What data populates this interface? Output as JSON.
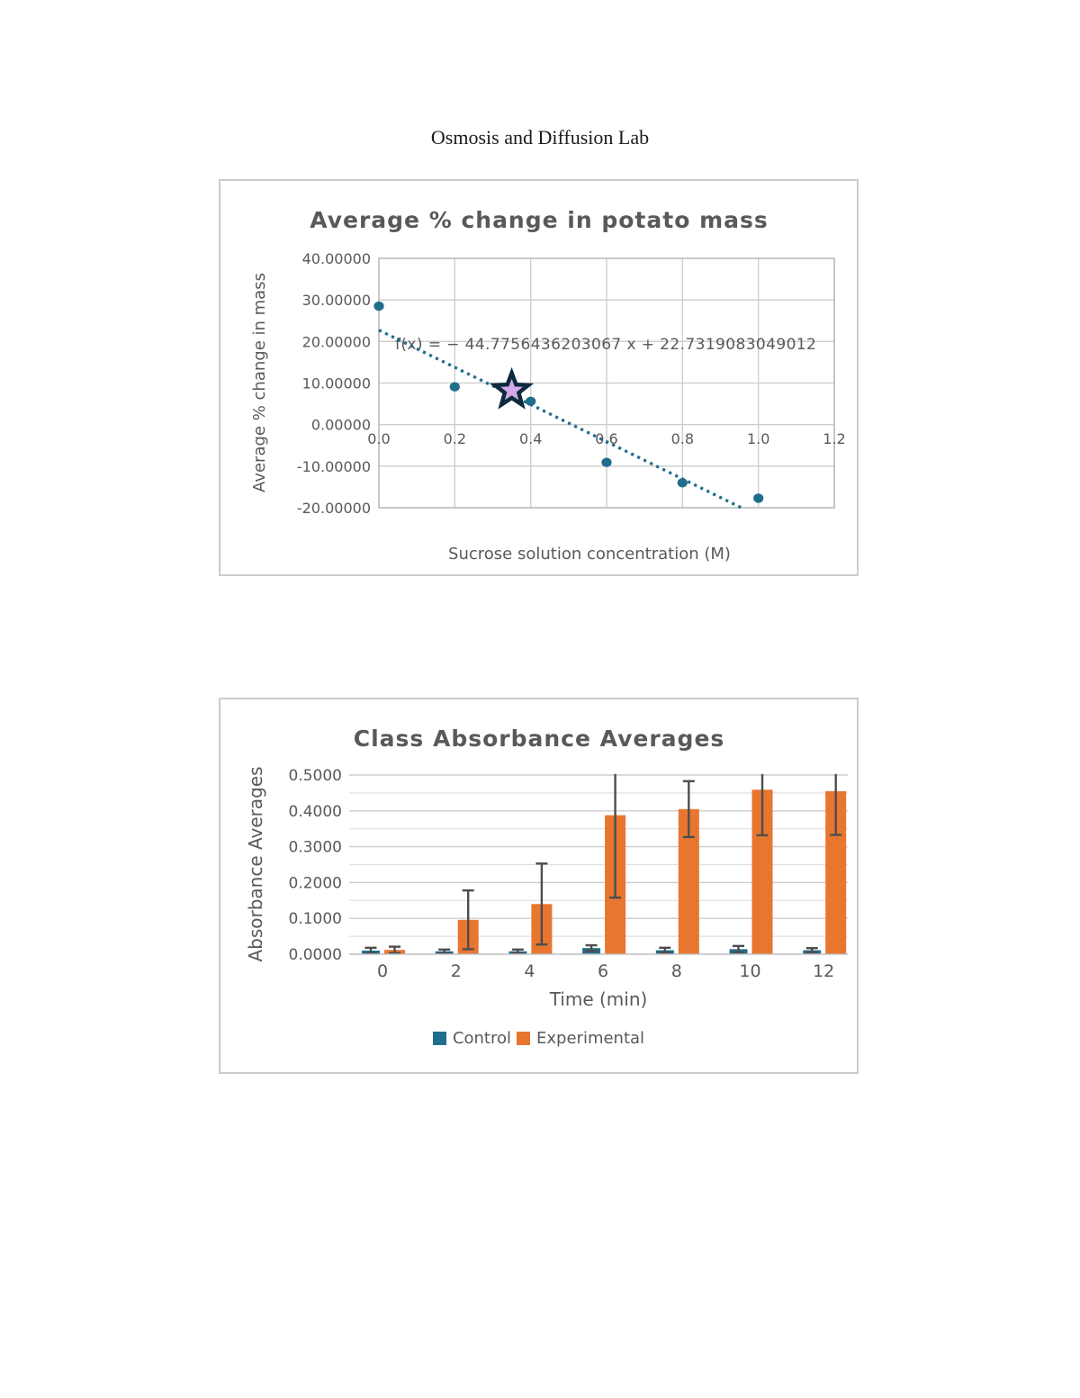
{
  "page": {
    "title": "Osmosis and Diffusion Lab"
  },
  "colors": {
    "chart_text": "#595959",
    "series_blue": "#1F6E8C",
    "series_orange": "#E8762F",
    "star_fill": "#D2A9E6",
    "star_stroke": "#0D2B3E",
    "error_bar": "#4D4D4D",
    "gridline": "#CDCDCD",
    "gridline_minor": "#DFDFDF",
    "plot_border": "#B9B9B9",
    "box_border": "#CBCBCB"
  },
  "chart_data": [
    {
      "type": "scatter",
      "title": "Average % change in potato mass",
      "xlabel": "Sucrose solution concentration (M)",
      "ylabel": "Average % change in mass",
      "xlim": [
        0.0,
        1.2
      ],
      "ylim": [
        -20,
        40
      ],
      "x_ticks": [
        "0.0",
        "0.2",
        "0.4",
        "0.6",
        "0.8",
        "1.0",
        "1.2"
      ],
      "y_ticks": [
        "40.00000",
        "30.00000",
        "20.00000",
        "10.00000",
        "0.00000",
        "-10.00000",
        "-20.00000"
      ],
      "grid": true,
      "points": [
        [
          0.0,
          28.5
        ],
        [
          0.2,
          9.1
        ],
        [
          0.4,
          5.6
        ],
        [
          0.6,
          -9.1
        ],
        [
          0.8,
          -14.0
        ],
        [
          1.0,
          -17.7
        ]
      ],
      "highlight_star_point": [
        0.35,
        8.2
      ],
      "trendline": {
        "equation_label": "f(x) = − 44.7756436203067 x + 22.7319083049012",
        "slope": -44.7756436203067,
        "intercept": 22.7319083049012,
        "x_start": 0.0,
        "x_end": 0.955,
        "style": "dotted"
      }
    },
    {
      "type": "bar",
      "title": "Class Absorbance Averages",
      "xlabel": "Time (min)",
      "ylabel": "Absorbance Averages",
      "categories": [
        "0",
        "2",
        "4",
        "6",
        "8",
        "10",
        "12"
      ],
      "ylim": [
        0.0,
        0.5
      ],
      "y_ticks": [
        "0.0000",
        "0.1000",
        "0.2000",
        "0.3000",
        "0.4000",
        "0.5000"
      ],
      "grid": true,
      "legend_position": "bottom",
      "error_clip_top": 0.503,
      "series": [
        {
          "name": "Control",
          "color_key": "series_blue",
          "values": [
            0.01,
            0.008,
            0.008,
            0.017,
            0.011,
            0.014,
            0.011
          ],
          "error": [
            0.008,
            0.005,
            0.005,
            0.008,
            0.007,
            0.009,
            0.006
          ]
        },
        {
          "name": "Experimental",
          "color_key": "series_orange",
          "values": [
            0.012,
            0.096,
            0.14,
            0.388,
            0.405,
            0.459,
            0.455
          ],
          "error": [
            0.009,
            0.082,
            0.113,
            0.23,
            0.078,
            0.127,
            0.122
          ]
        }
      ]
    }
  ]
}
